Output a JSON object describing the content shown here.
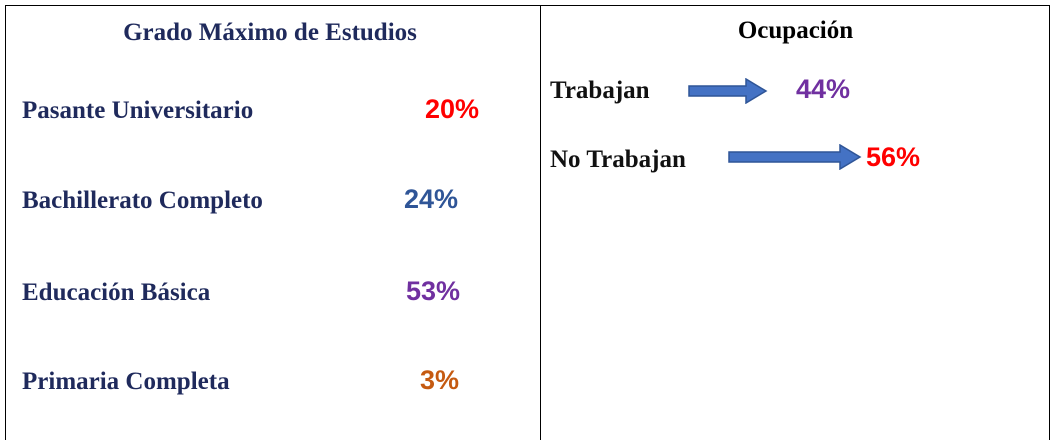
{
  "estudios": {
    "title": "Grado Máximo de Estudios",
    "items": [
      {
        "label": "Pasante Universitario",
        "value": "20%",
        "color": "#ff0000"
      },
      {
        "label": "Bachillerato Completo",
        "value": "24%",
        "color": "#2f5597"
      },
      {
        "label": "Educación Básica",
        "value": "53%",
        "color": "#7030a0"
      },
      {
        "label": "Primaria Completa",
        "value": "3%",
        "color": "#c55a11"
      }
    ]
  },
  "ocupacion": {
    "title": "Ocupación",
    "items": [
      {
        "label": "Trabajan",
        "value": "44%",
        "color": "#7030a0"
      },
      {
        "label": "No Trabajan",
        "value": "56%",
        "color": "#ff0000"
      }
    ]
  }
}
